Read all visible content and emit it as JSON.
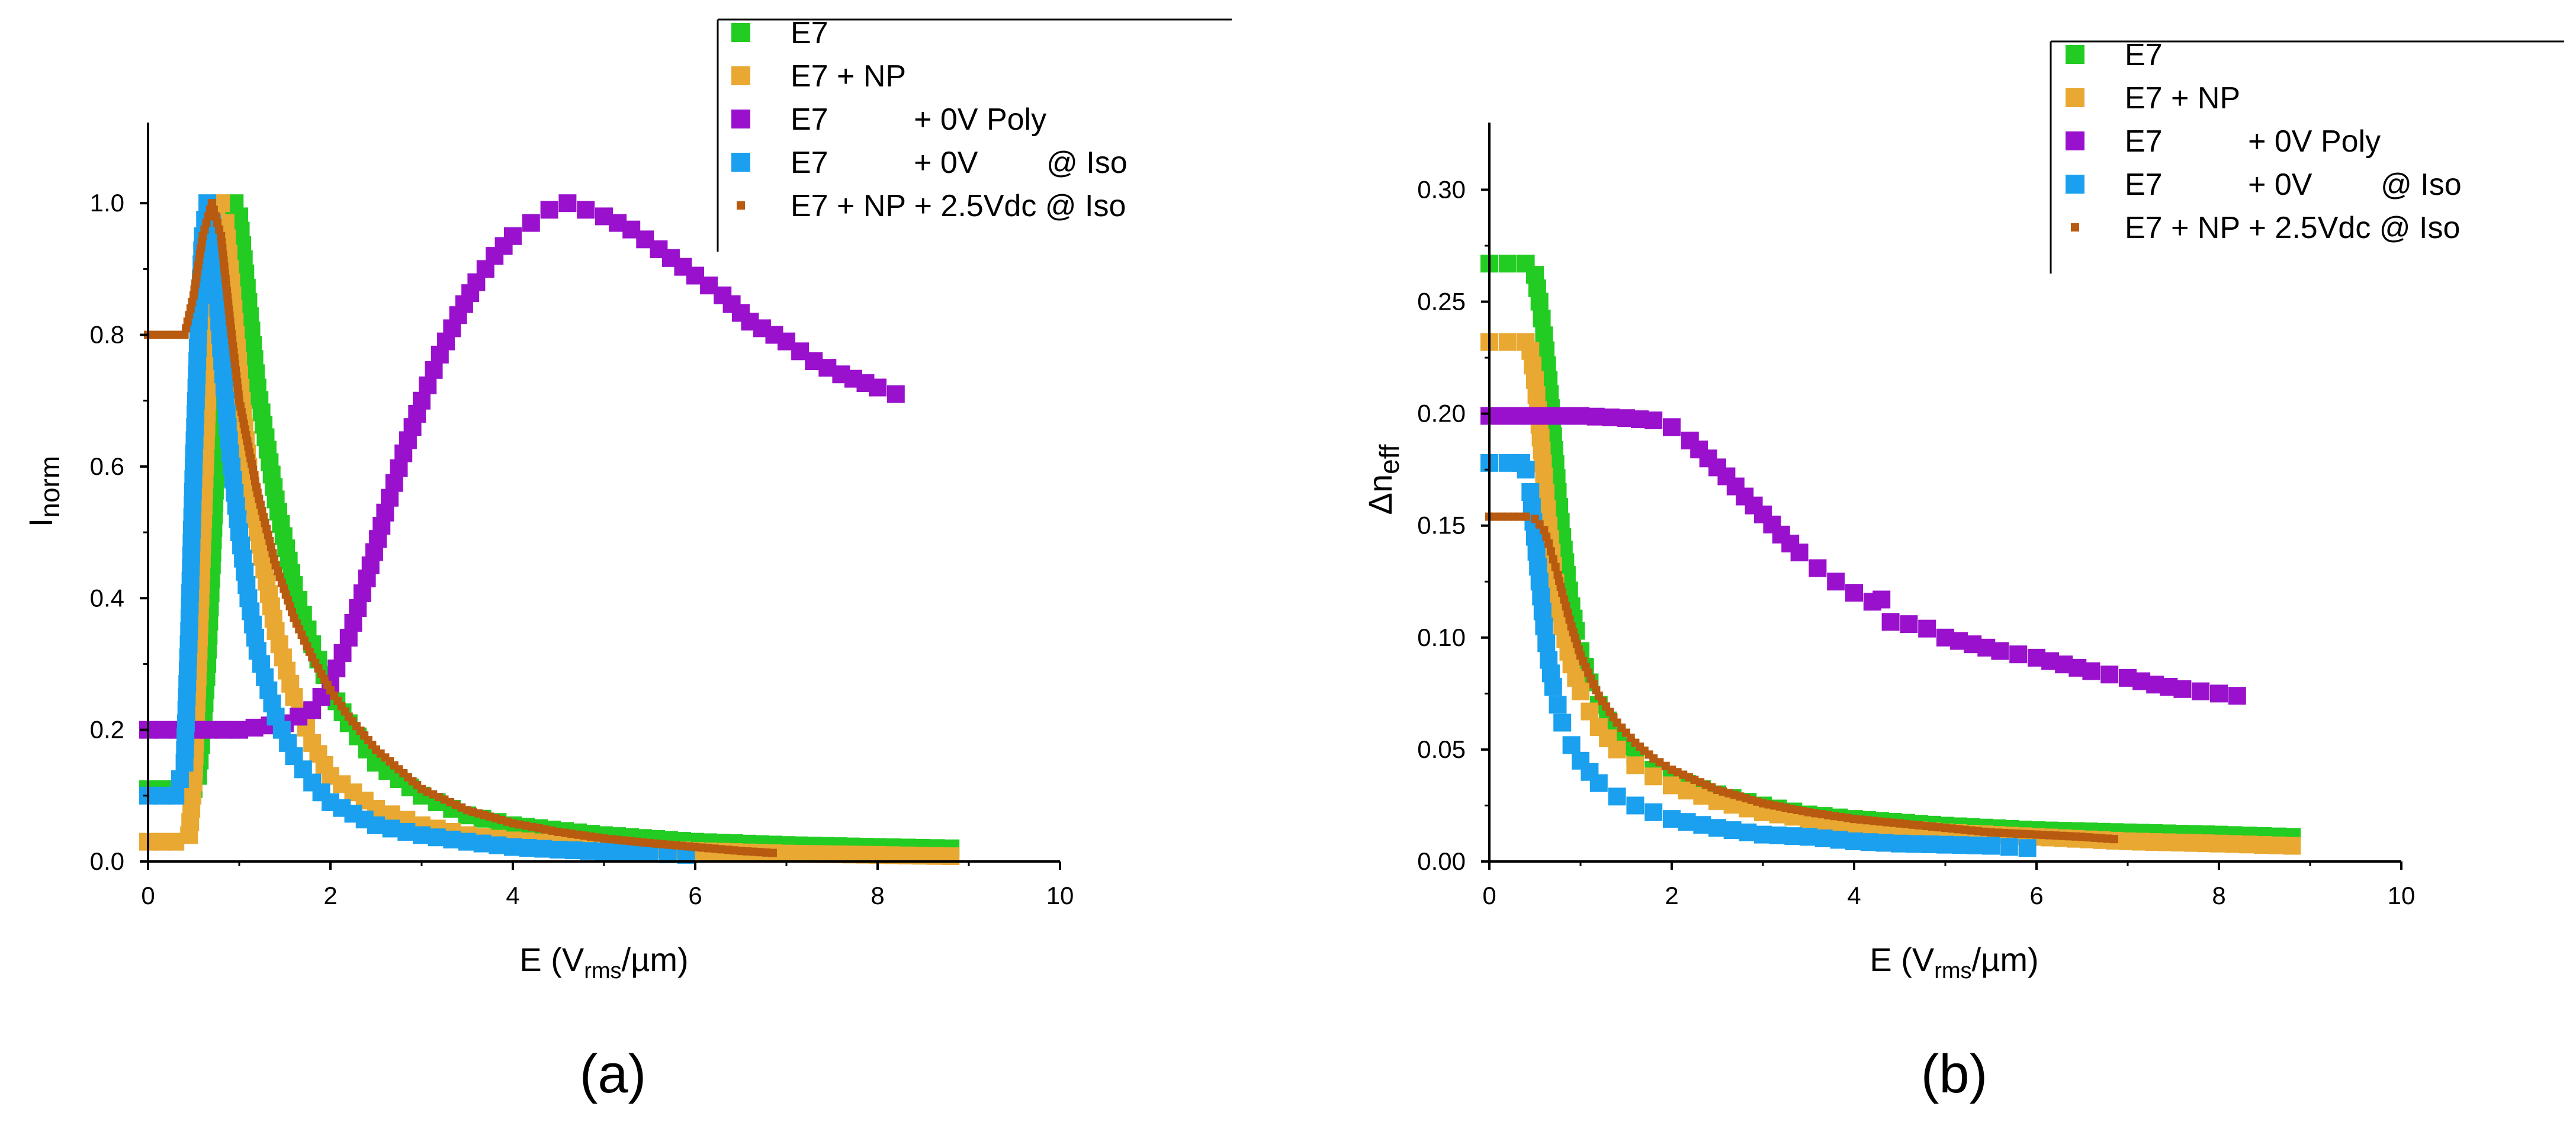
{
  "chart_data": [
    {
      "type": "scatter",
      "panel_label": "(a)",
      "xlabel": "E (V",
      "xlabel_sub": "rms",
      "xlabel_tail": "/µm)",
      "ylabel": "I",
      "ylabel_sub": "norm",
      "xlim": [
        0,
        10
      ],
      "ylim": [
        0,
        1.1
      ],
      "xticks": [
        "0",
        "2",
        "4",
        "6",
        "8",
        "10"
      ],
      "yticks": [
        "0.0",
        "0.2",
        "0.4",
        "0.6",
        "0.8",
        "1.0"
      ],
      "ytick_values": [
        0,
        0.2,
        0.4,
        0.6,
        0.8,
        1.0
      ],
      "legend": {
        "placement": "top-right",
        "entries": [
          "E7",
          "E7 + NP",
          "E7          + 0V Poly",
          "E7          + 0V        @ Iso",
          "E7 + NP + 2.5Vdc @ Iso"
        ]
      },
      "series": [
        {
          "name": "E7",
          "color": "#22cc22",
          "marker": "square",
          "x": [
            0,
            0.3,
            0.5,
            0.55,
            0.6,
            0.65,
            0.7,
            0.75,
            0.8,
            0.85,
            0.9,
            0.95,
            1.0,
            1.1,
            1.2,
            1.4,
            1.6,
            1.8,
            2.0,
            2.2,
            2.5,
            3.0,
            3.5,
            4.0,
            5.0,
            6.0,
            7.0,
            8.0,
            8.8
          ],
          "y": [
            0.11,
            0.11,
            0.11,
            0.13,
            0.2,
            0.3,
            0.45,
            0.62,
            0.78,
            0.9,
            0.98,
            1.0,
            0.98,
            0.85,
            0.72,
            0.55,
            0.42,
            0.33,
            0.26,
            0.21,
            0.15,
            0.1,
            0.07,
            0.055,
            0.04,
            0.03,
            0.025,
            0.022,
            0.02
          ]
        },
        {
          "name": "E7 + NP",
          "color": "#e8a832",
          "marker": "square",
          "x": [
            0,
            0.3,
            0.45,
            0.5,
            0.55,
            0.6,
            0.65,
            0.7,
            0.75,
            0.8,
            0.85,
            0.9,
            0.95,
            1.0,
            1.1,
            1.2,
            1.4,
            1.6,
            1.8,
            2.0,
            2.5,
            3.0,
            3.5,
            4.0,
            5.0,
            6.0,
            7.0,
            8.0,
            8.8
          ],
          "y": [
            0.03,
            0.03,
            0.04,
            0.12,
            0.3,
            0.5,
            0.7,
            0.88,
            0.98,
            1.0,
            0.97,
            0.9,
            0.82,
            0.74,
            0.6,
            0.5,
            0.35,
            0.25,
            0.18,
            0.13,
            0.08,
            0.055,
            0.04,
            0.032,
            0.022,
            0.016,
            0.012,
            0.01,
            0.008
          ]
        },
        {
          "name": "E7          + 0V Poly",
          "color": "#9911cc",
          "marker": "square",
          "x": [
            0,
            0.5,
            1.0,
            1.5,
            1.8,
            2.0,
            2.2,
            2.4,
            2.6,
            2.8,
            3.0,
            3.2,
            3.4,
            3.6,
            3.8,
            4.0,
            4.2,
            4.4,
            4.6,
            4.8,
            5.0,
            5.3,
            5.6,
            6.0,
            6.3,
            6.6,
            7.0,
            7.3,
            7.6,
            8.0,
            8.2
          ],
          "y": [
            0.2,
            0.2,
            0.2,
            0.21,
            0.23,
            0.27,
            0.34,
            0.43,
            0.53,
            0.62,
            0.7,
            0.77,
            0.83,
            0.88,
            0.92,
            0.95,
            0.97,
            0.99,
            1.0,
            0.99,
            0.98,
            0.96,
            0.93,
            0.89,
            0.86,
            0.82,
            0.79,
            0.76,
            0.74,
            0.72,
            0.71
          ]
        },
        {
          "name": "E7          + 0V        @ Iso",
          "color": "#1aa0ee",
          "marker": "square",
          "x": [
            0,
            0.3,
            0.4,
            0.45,
            0.5,
            0.55,
            0.6,
            0.65,
            0.7,
            0.75,
            0.8,
            0.9,
            1.0,
            1.1,
            1.2,
            1.4,
            1.6,
            1.8,
            2.0,
            2.5,
            3.0,
            3.5,
            4.0,
            4.5,
            5.0,
            5.5,
            5.9
          ],
          "y": [
            0.1,
            0.1,
            0.15,
            0.35,
            0.6,
            0.8,
            0.95,
            1.0,
            0.97,
            0.88,
            0.78,
            0.62,
            0.5,
            0.4,
            0.32,
            0.22,
            0.16,
            0.12,
            0.09,
            0.055,
            0.04,
            0.03,
            0.022,
            0.018,
            0.015,
            0.012,
            0.01
          ]
        },
        {
          "name": "E7 + NP + 2.5Vdc @ Iso",
          "color": "#b85a10",
          "marker": "small-square",
          "x": [
            0,
            0.2,
            0.4,
            0.5,
            0.6,
            0.7,
            0.8,
            0.9,
            1.0,
            1.2,
            1.4,
            1.6,
            1.8,
            2.0,
            2.2,
            2.5,
            3.0,
            3.5,
            4.0,
            4.5,
            5.0,
            5.5,
            6.0,
            6.5,
            6.85
          ],
          "y": [
            0.8,
            0.8,
            0.8,
            0.86,
            0.95,
            1.0,
            0.95,
            0.82,
            0.7,
            0.56,
            0.45,
            0.37,
            0.31,
            0.26,
            0.22,
            0.17,
            0.11,
            0.078,
            0.058,
            0.045,
            0.035,
            0.028,
            0.022,
            0.016,
            0.013
          ]
        }
      ]
    },
    {
      "type": "scatter",
      "panel_label": "(b)",
      "xlabel": "E (V",
      "xlabel_sub": "rms",
      "xlabel_tail": "/µm)",
      "ylabel": "Δn",
      "ylabel_sub": "eff",
      "xlim": [
        0,
        10
      ],
      "ylim": [
        0,
        0.33
      ],
      "xticks": [
        "0",
        "2",
        "4",
        "6",
        "8",
        "10"
      ],
      "yticks": [
        "0.00",
        "0.05",
        "0.10",
        "0.15",
        "0.20",
        "0.25",
        "0.30"
      ],
      "ytick_values": [
        0,
        0.05,
        0.1,
        0.15,
        0.2,
        0.25,
        0.3
      ],
      "legend": {
        "placement": "top-right",
        "entries": [
          "E7",
          "E7 + NP",
          "E7          + 0V Poly",
          "E7          + 0V        @ Iso",
          "E7 + NP + 2.5Vdc @ Iso"
        ]
      },
      "series": [
        {
          "name": "E7",
          "color": "#22cc22",
          "marker": "square",
          "x": [
            0,
            0.2,
            0.4,
            0.5,
            0.55,
            0.6,
            0.65,
            0.7,
            0.75,
            0.8,
            0.85,
            0.9,
            0.95,
            1.0,
            1.1,
            1.2,
            1.4,
            1.6,
            1.8,
            2.0,
            2.5,
            3.0,
            3.5,
            4.0,
            5.0,
            6.0,
            7.0,
            8.0,
            8.8
          ],
          "y": [
            0.267,
            0.267,
            0.267,
            0.262,
            0.25,
            0.235,
            0.215,
            0.19,
            0.165,
            0.145,
            0.128,
            0.114,
            0.103,
            0.094,
            0.08,
            0.07,
            0.056,
            0.047,
            0.041,
            0.037,
            0.03,
            0.025,
            0.021,
            0.019,
            0.016,
            0.014,
            0.013,
            0.012,
            0.011
          ]
        },
        {
          "name": "E7 + NP",
          "color": "#e8a832",
          "marker": "square",
          "x": [
            0,
            0.2,
            0.4,
            0.45,
            0.5,
            0.55,
            0.6,
            0.65,
            0.7,
            0.75,
            0.8,
            0.9,
            1.0,
            1.1,
            1.2,
            1.4,
            1.6,
            1.8,
            2.0,
            2.5,
            3.0,
            3.5,
            4.0,
            5.0,
            6.0,
            7.0,
            8.0,
            8.8
          ],
          "y": [
            0.232,
            0.232,
            0.232,
            0.228,
            0.215,
            0.195,
            0.172,
            0.15,
            0.132,
            0.117,
            0.105,
            0.088,
            0.076,
            0.067,
            0.06,
            0.05,
            0.043,
            0.038,
            0.034,
            0.027,
            0.022,
            0.019,
            0.016,
            0.013,
            0.011,
            0.009,
            0.008,
            0.007
          ]
        },
        {
          "name": "E7          + 0V Poly",
          "color": "#9911cc",
          "marker": "square",
          "x": [
            0,
            0.5,
            1.0,
            1.5,
            1.8,
            2.0,
            2.2,
            2.4,
            2.6,
            2.8,
            3.0,
            3.2,
            3.4,
            3.6,
            3.8,
            4.0,
            4.2,
            4.3,
            4.4,
            4.6,
            4.8,
            5.0,
            5.3,
            5.6,
            6.0,
            6.3,
            6.6,
            7.0,
            7.3,
            7.6,
            8.0,
            8.2
          ],
          "y": [
            0.199,
            0.199,
            0.199,
            0.198,
            0.197,
            0.194,
            0.188,
            0.18,
            0.172,
            0.163,
            0.155,
            0.146,
            0.138,
            0.131,
            0.125,
            0.12,
            0.116,
            0.117,
            0.107,
            0.106,
            0.104,
            0.1,
            0.097,
            0.094,
            0.091,
            0.088,
            0.085,
            0.082,
            0.079,
            0.077,
            0.075,
            0.074
          ]
        },
        {
          "name": "E7          + 0V        @ Iso",
          "color": "#1aa0ee",
          "marker": "square",
          "x": [
            0,
            0.2,
            0.35,
            0.4,
            0.45,
            0.5,
            0.55,
            0.6,
            0.65,
            0.7,
            0.8,
            0.9,
            1.0,
            1.2,
            1.4,
            1.6,
            1.8,
            2.0,
            2.5,
            3.0,
            3.5,
            4.0,
            4.5,
            5.0,
            5.5,
            5.9
          ],
          "y": [
            0.178,
            0.178,
            0.178,
            0.175,
            0.165,
            0.145,
            0.125,
            0.105,
            0.09,
            0.078,
            0.062,
            0.052,
            0.045,
            0.035,
            0.029,
            0.025,
            0.022,
            0.019,
            0.015,
            0.012,
            0.011,
            0.009,
            0.008,
            0.0075,
            0.007,
            0.006
          ]
        },
        {
          "name": "E7 + NP + 2.5Vdc @ Iso",
          "color": "#b85a10",
          "marker": "small-square",
          "x": [
            0,
            0.2,
            0.4,
            0.5,
            0.6,
            0.65,
            0.7,
            0.75,
            0.8,
            0.9,
            1.0,
            1.2,
            1.4,
            1.6,
            1.8,
            2.0,
            2.5,
            3.0,
            3.5,
            4.0,
            4.5,
            5.0,
            5.5,
            6.0,
            6.5,
            6.85
          ],
          "y": [
            0.154,
            0.154,
            0.154,
            0.153,
            0.148,
            0.142,
            0.135,
            0.128,
            0.12,
            0.105,
            0.092,
            0.074,
            0.062,
            0.053,
            0.046,
            0.041,
            0.032,
            0.026,
            0.022,
            0.019,
            0.017,
            0.015,
            0.013,
            0.012,
            0.011,
            0.01
          ]
        }
      ]
    }
  ]
}
